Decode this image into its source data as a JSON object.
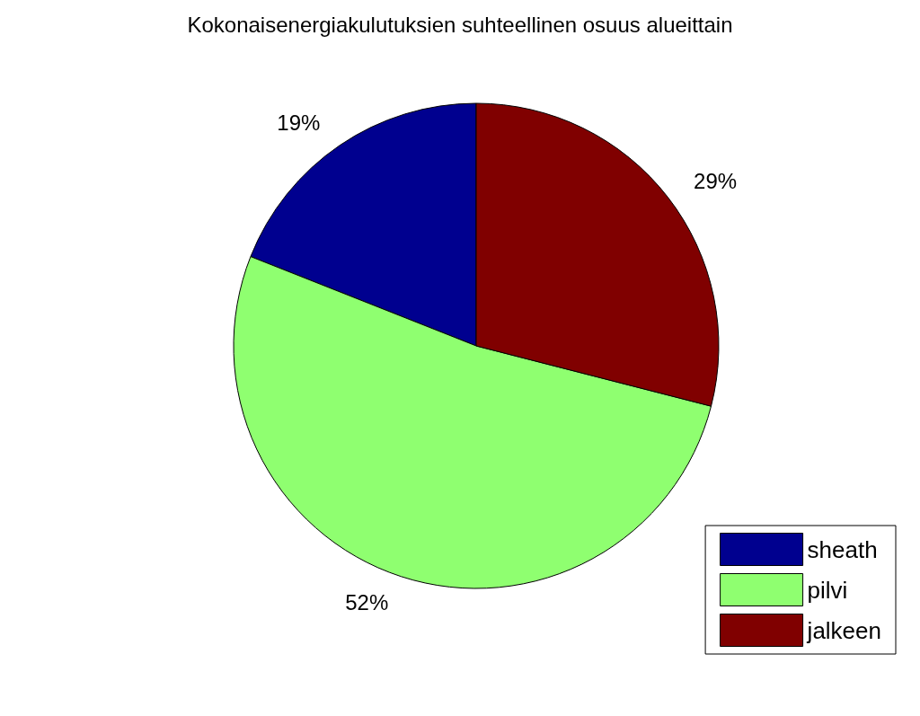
{
  "chart_data": {
    "type": "pie",
    "title": "Kokonaisenergiakulutuksien suhteellinen osuus alueittain",
    "categories": [
      "sheath",
      "pilvi",
      "jalkeen"
    ],
    "values": [
      19,
      52,
      29
    ],
    "value_labels": [
      "19%",
      "52%",
      "29%"
    ],
    "colors": [
      "#00008f",
      "#8fff70",
      "#800000"
    ],
    "legend": "bottom right"
  }
}
